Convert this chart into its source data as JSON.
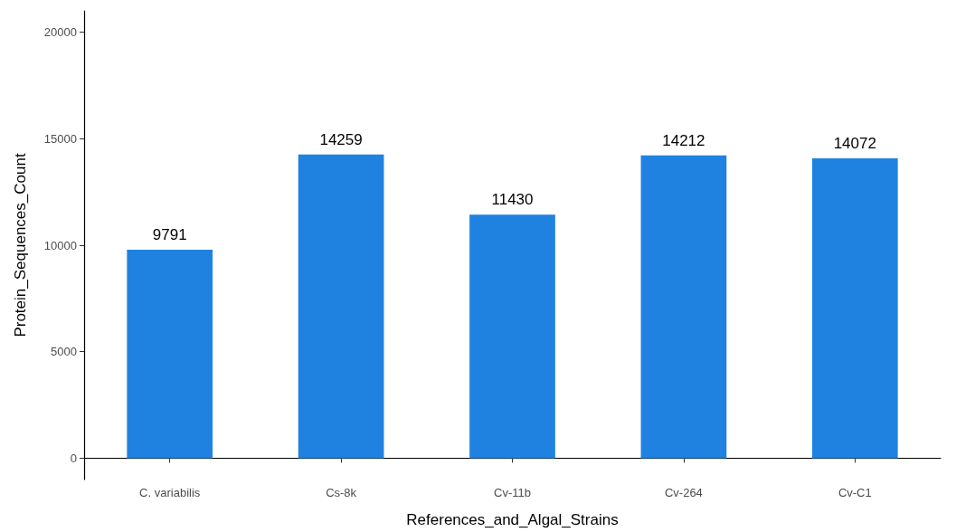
{
  "chart_data": {
    "type": "bar",
    "xlabel": "References_and_Algal_Strains",
    "ylabel": "Protein_Sequences_Count",
    "categories": [
      "C. variabilis",
      "Cs-8k",
      "Cv-11b",
      "Cv-264",
      "Cv-C1"
    ],
    "values": [
      9791,
      14259,
      11430,
      14212,
      14072
    ],
    "color": "#1f82e0",
    "ylim": [
      -1000,
      21000
    ],
    "yticks": [
      0,
      5000,
      10000,
      15000,
      20000
    ],
    "grid": false,
    "data_labels": true
  }
}
